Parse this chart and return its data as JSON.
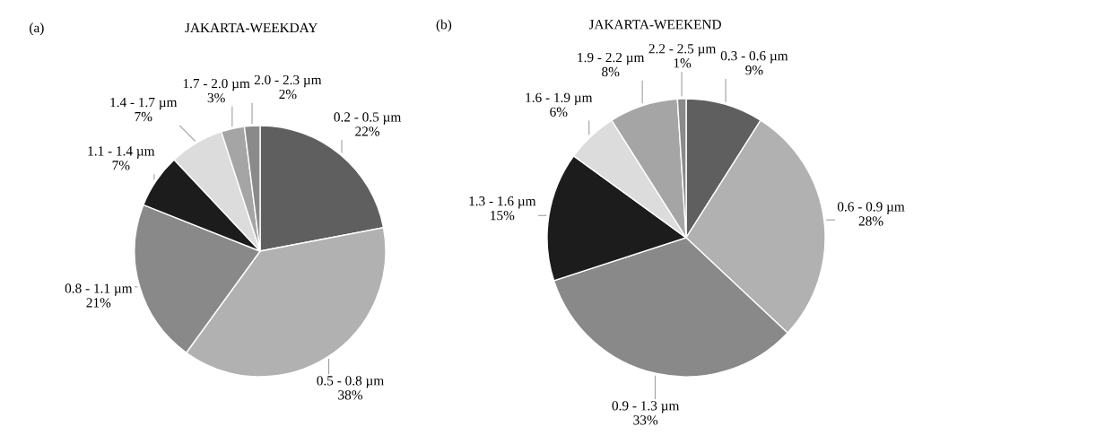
{
  "chart_data": [
    {
      "type": "pie",
      "title": "JAKARTA-WEEKDAY",
      "annotations": [
        "(a)"
      ],
      "categories": [
        "0.2 - 0.5 µm",
        "0.5 - 0.8 µm",
        "0.8 - 1.1 µm",
        "1.1 - 1.4 µm",
        "1.4 - 1.7 µm",
        "1.7 - 2.0 µm",
        "2.0 - 2.3 µm"
      ],
      "values": [
        22,
        38,
        21,
        7,
        7,
        3,
        2
      ],
      "value_labels": [
        "22%",
        "38%",
        "21%",
        "7%",
        "7%",
        "3%",
        "2%"
      ],
      "colors": [
        "#5f5f5f",
        "#b1b1b1",
        "#898989",
        "#1c1c1c",
        "#dcdcdc",
        "#a5a5a5",
        "#8a8a8a"
      ]
    },
    {
      "type": "pie",
      "title": "JAKARTA-WEEKEND",
      "annotations": [
        "(b)"
      ],
      "categories": [
        "0.3 - 0.6 µm",
        "0.6 - 0.9 µm",
        "0.9 - 1.3 µm",
        "1.3 - 1.6 µm",
        "1.6 - 1.9 µm",
        "1.9 - 2.2 µm",
        "2.2 - 2.5 µm"
      ],
      "values": [
        9,
        28,
        33,
        15,
        6,
        8,
        1
      ],
      "value_labels": [
        "9%",
        "28%",
        "33%",
        "15%",
        "6%",
        "8%",
        "1%"
      ],
      "colors": [
        "#5f5f5f",
        "#b1b1b1",
        "#898989",
        "#1c1c1c",
        "#dcdcdc",
        "#a5a5a5",
        "#8a8a8a"
      ]
    }
  ]
}
